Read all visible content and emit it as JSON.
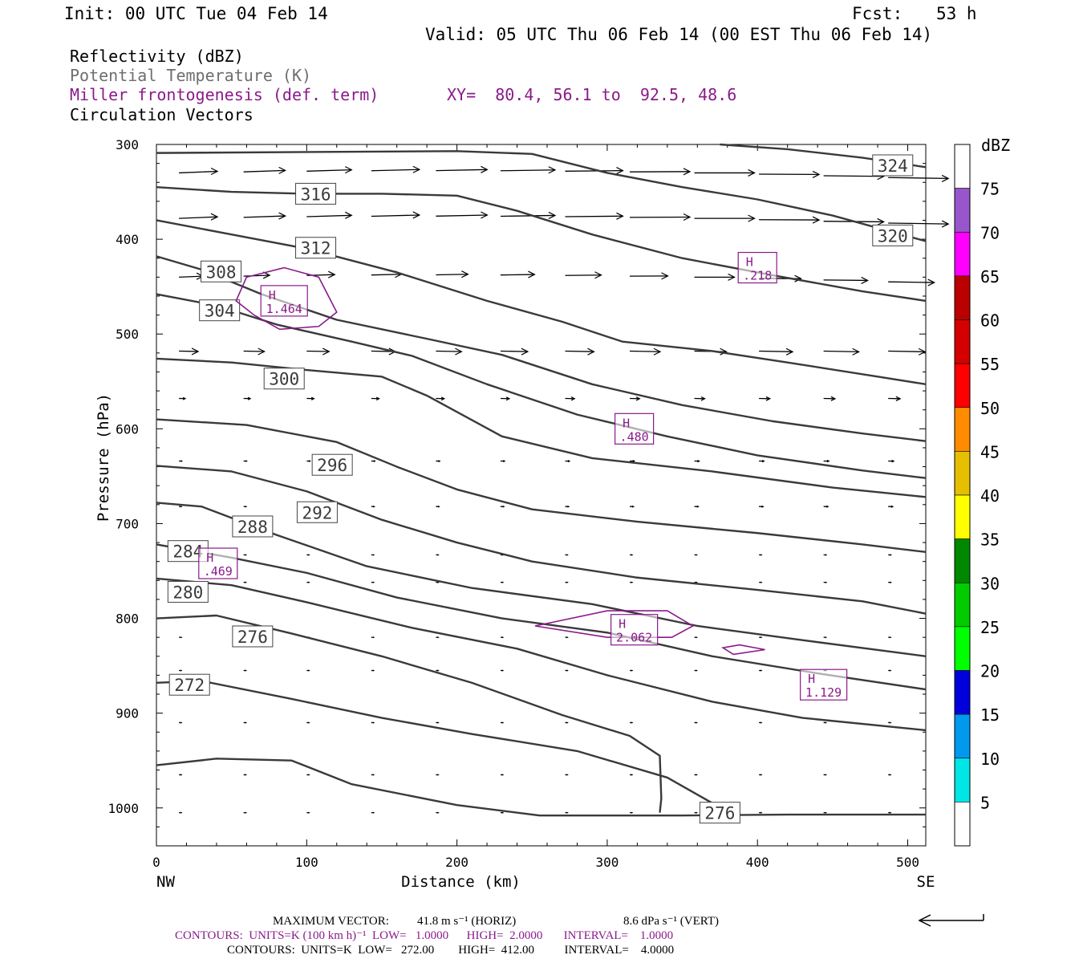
{
  "header": {
    "init": "Init: 00 UTC Tue 04 Feb 14",
    "fcst_label": "Fcst:",
    "fcst_value": "53 h",
    "valid": "Valid: 05 UTC Thu 06 Feb 14 (00 EST Thu 06 Feb 14)"
  },
  "legend": {
    "reflectivity": "Reflectivity (dBZ)",
    "theta": "Potential Temperature (K)",
    "miller": "Miller frontogenesis (def. term)",
    "xy": "XY=  80.4, 56.1 to  92.5, 48.6",
    "vectors": "Circulation Vectors"
  },
  "footer": {
    "max_vector_label": "MAXIMUM VECTOR:",
    "max_vector_horiz": "41.8 m s⁻¹ (HORIZ)",
    "max_vector_vert": "8.6 dPa s⁻¹ (VERT)",
    "contours1": "CONTOURS:  UNITS=K (100 km h)⁻¹  LOW=   1.0000      HIGH=  2.0000       INTERVAL=    1.0000",
    "contours2": "CONTOURS:  UNITS=K  LOW=   272.00        HIGH=  412.00          INTERVAL=    4.0000"
  },
  "colors": {
    "theta": "#3a3a3a",
    "frontogenesis": "#8a1a8a",
    "vectors": "#000000"
  },
  "chart_data": {
    "type": "cross-section",
    "xlabel": "Distance (km)",
    "ylabel": "Pressure (hPa)",
    "x_ticks": [
      0,
      100,
      200,
      300,
      400,
      500
    ],
    "y_ticks": [
      300,
      400,
      500,
      600,
      700,
      800,
      900,
      1000
    ],
    "xlim": [
      0,
      512
    ],
    "ylim": [
      300,
      1040
    ],
    "y_reversed": true,
    "left_end_label": "NW",
    "right_end_label": "SE",
    "colorbar": {
      "title": "dBZ",
      "labels": [
        5,
        10,
        15,
        20,
        25,
        30,
        35,
        40,
        45,
        50,
        55,
        60,
        65,
        70,
        75
      ],
      "colors": [
        "#ffffff",
        "#00e6e6",
        "#0099ee",
        "#0000dd",
        "#00ff00",
        "#00cc00",
        "#008800",
        "#ffff00",
        "#e6c000",
        "#ff8c00",
        "#ff0000",
        "#d40000",
        "#bb0000",
        "#ff00ff",
        "#9955cc",
        "#ffffff"
      ]
    },
    "theta_contours": [
      {
        "level": 272,
        "label": "272",
        "label_at": [
          22,
          870
        ],
        "points": [
          [
            0,
            868
          ],
          [
            30,
            866
          ],
          [
            90,
            885
          ],
          [
            150,
            905
          ],
          [
            210,
            922
          ],
          [
            280,
            940
          ],
          [
            340,
            968
          ],
          [
            370,
            995
          ],
          [
            380,
            1003
          ]
        ]
      },
      {
        "level": 276,
        "label": "276",
        "label_at": [
          64,
          819
        ],
        "points": [
          [
            0,
            800
          ],
          [
            40,
            797
          ],
          [
            90,
            816
          ],
          [
            150,
            840
          ],
          [
            210,
            868
          ],
          [
            270,
            902
          ],
          [
            315,
            924
          ],
          [
            335,
            945
          ],
          [
            336,
            990
          ],
          [
            335,
            1005
          ]
        ]
      },
      {
        "level": 276,
        "label": "276",
        "label_at": [
          375,
          1005
        ],
        "points": [
          [
            0,
            955
          ],
          [
            40,
            948
          ],
          [
            90,
            950
          ],
          [
            130,
            975
          ],
          [
            200,
            997
          ],
          [
            255,
            1008
          ],
          [
            300,
            1008
          ],
          [
            350,
            1008
          ],
          [
            420,
            1007
          ],
          [
            512,
            1007
          ]
        ]
      },
      {
        "level": 280,
        "label": "280",
        "label_at": [
          21,
          772
        ],
        "points": [
          [
            0,
            758
          ],
          [
            50,
            765
          ],
          [
            100,
            783
          ],
          [
            170,
            810
          ],
          [
            240,
            832
          ],
          [
            300,
            860
          ],
          [
            370,
            888
          ],
          [
            430,
            905
          ],
          [
            512,
            918
          ]
        ]
      },
      {
        "level": 284,
        "label": "284",
        "label_at": [
          21,
          729
        ],
        "points": [
          [
            0,
            722
          ],
          [
            50,
            736
          ],
          [
            100,
            752
          ],
          [
            160,
            778
          ],
          [
            230,
            800
          ],
          [
            300,
            815
          ],
          [
            370,
            840
          ],
          [
            440,
            858
          ],
          [
            512,
            875
          ]
        ]
      },
      {
        "level": 288,
        "label": "288",
        "label_at": [
          64,
          703
        ],
        "points": [
          [
            0,
            678
          ],
          [
            30,
            682
          ],
          [
            80,
            712
          ],
          [
            140,
            745
          ],
          [
            210,
            768
          ],
          [
            290,
            785
          ],
          [
            360,
            808
          ],
          [
            430,
            823
          ],
          [
            512,
            840
          ]
        ]
      },
      {
        "level": 292,
        "label": "292",
        "label_at": [
          107,
          688
        ],
        "points": [
          [
            0,
            639
          ],
          [
            50,
            645
          ],
          [
            100,
            666
          ],
          [
            150,
            696
          ],
          [
            200,
            720
          ],
          [
            250,
            740
          ],
          [
            320,
            757
          ],
          [
            400,
            770
          ],
          [
            470,
            782
          ],
          [
            512,
            795
          ]
        ]
      },
      {
        "level": 296,
        "label": "296",
        "label_at": [
          117,
          638
        ],
        "points": [
          [
            0,
            590
          ],
          [
            60,
            596
          ],
          [
            120,
            614
          ],
          [
            160,
            640
          ],
          [
            200,
            664
          ],
          [
            250,
            685
          ],
          [
            320,
            698
          ],
          [
            400,
            710
          ],
          [
            470,
            722
          ],
          [
            512,
            730
          ]
        ]
      },
      {
        "level": 300,
        "label": "300",
        "label_at": [
          85,
          547
        ],
        "points": [
          [
            0,
            526
          ],
          [
            50,
            530
          ],
          [
            100,
            538
          ],
          [
            150,
            545
          ],
          [
            180,
            565
          ],
          [
            230,
            608
          ],
          [
            290,
            631
          ],
          [
            370,
            645
          ],
          [
            450,
            662
          ],
          [
            512,
            672
          ]
        ]
      },
      {
        "level": 304,
        "label": "304",
        "label_at": [
          42,
          475
        ],
        "points": [
          [
            0,
            458
          ],
          [
            40,
            470
          ],
          [
            80,
            490
          ],
          [
            130,
            508
          ],
          [
            170,
            523
          ],
          [
            220,
            553
          ],
          [
            280,
            585
          ],
          [
            340,
            608
          ],
          [
            400,
            628
          ],
          [
            470,
            644
          ],
          [
            512,
            652
          ]
        ]
      },
      {
        "level": 308,
        "label": "308",
        "label_at": [
          43,
          434
        ],
        "points": [
          [
            0,
            418
          ],
          [
            30,
            432
          ],
          [
            70,
            458
          ],
          [
            120,
            485
          ],
          [
            180,
            505
          ],
          [
            230,
            522
          ],
          [
            290,
            553
          ],
          [
            350,
            575
          ],
          [
            410,
            592
          ],
          [
            470,
            605
          ],
          [
            512,
            613
          ]
        ]
      },
      {
        "level": 312,
        "label": "312",
        "label_at": [
          106,
          409
        ],
        "points": [
          [
            0,
            380
          ],
          [
            50,
            395
          ],
          [
            100,
            410
          ],
          [
            160,
            435
          ],
          [
            220,
            465
          ],
          [
            270,
            487
          ],
          [
            310,
            508
          ],
          [
            370,
            518
          ],
          [
            420,
            530
          ],
          [
            480,
            545
          ],
          [
            512,
            553
          ]
        ]
      },
      {
        "level": 316,
        "label": "316",
        "label_at": [
          106,
          352
        ],
        "points": [
          [
            0,
            345
          ],
          [
            50,
            350
          ],
          [
            100,
            352
          ],
          [
            150,
            352
          ],
          [
            200,
            354
          ],
          [
            240,
            370
          ],
          [
            290,
            395
          ],
          [
            350,
            420
          ],
          [
            410,
            438
          ],
          [
            470,
            455
          ],
          [
            512,
            465
          ]
        ]
      },
      {
        "level": 320,
        "label": "320",
        "label_at": [
          490,
          396
        ],
        "points": [
          [
            0,
            309
          ],
          [
            100,
            308
          ],
          [
            200,
            307
          ],
          [
            250,
            310
          ],
          [
            300,
            330
          ],
          [
            350,
            345
          ],
          [
            400,
            358
          ],
          [
            450,
            375
          ],
          [
            512,
            402
          ]
        ]
      },
      {
        "level": 324,
        "label": "324",
        "label_at": [
          490,
          322
        ],
        "points": [
          [
            375,
            300
          ],
          [
            420,
            305
          ],
          [
            470,
            314
          ],
          [
            512,
            324
          ]
        ]
      }
    ],
    "frontogenesis_maxima": [
      {
        "label": "H",
        "value": "1.464",
        "x": 85,
        "p": 465
      },
      {
        "label": "H",
        "value": ".218",
        "x": 400,
        "p": 430
      },
      {
        "label": "H",
        "value": ".480",
        "x": 318,
        "p": 600
      },
      {
        "label": "H",
        "value": ".469",
        "x": 41,
        "p": 742
      },
      {
        "label": "H",
        "value": "2.062",
        "x": 318,
        "p": 812
      },
      {
        "label": "H",
        "value": "1.129",
        "x": 444,
        "p": 870
      }
    ]
  }
}
